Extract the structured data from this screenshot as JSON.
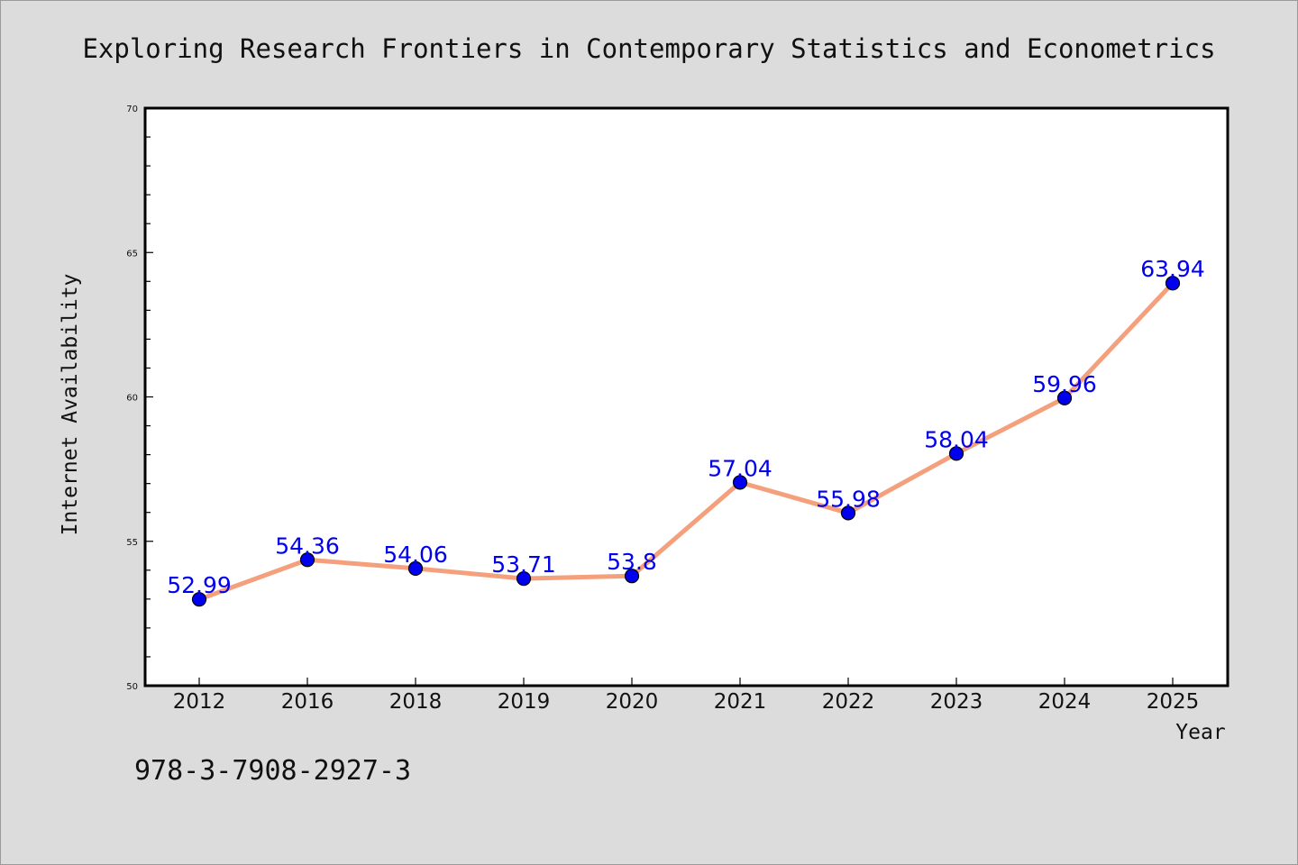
{
  "page": {
    "background": "#dcdcdc",
    "footnote": "978-3-7908-2927-3"
  },
  "chart_data": {
    "type": "line",
    "title": "Exploring Research Frontiers in Contemporary Statistics and Econometrics",
    "xlabel": "Year",
    "ylabel": "Internet Availability",
    "categories": [
      "2012",
      "2016",
      "2018",
      "2019",
      "2020",
      "2021",
      "2022",
      "2023",
      "2024",
      "2025"
    ],
    "series": [
      {
        "values": [
          52.99,
          54.36,
          54.06,
          53.71,
          53.8,
          57.04,
          55.98,
          58.04,
          59.96,
          63.94
        ],
        "labels": [
          "52.99",
          "54.36",
          "54.06",
          "53.71",
          "53.8",
          "57.04",
          "55.98",
          "58.04",
          "59.96",
          "63.94"
        ],
        "line_color": "#f4a07c",
        "marker_color": "#0000ee",
        "label_color": "#0000ee"
      }
    ],
    "ylim": [
      50,
      70
    ],
    "yticks": [
      50,
      55,
      60,
      65,
      70
    ],
    "ytick_labels": [
      "50",
      "55",
      "60",
      "65",
      "70"
    ],
    "y_minor_step": 1,
    "grid": false,
    "legend": "none",
    "plot_background": "#ffffff"
  }
}
